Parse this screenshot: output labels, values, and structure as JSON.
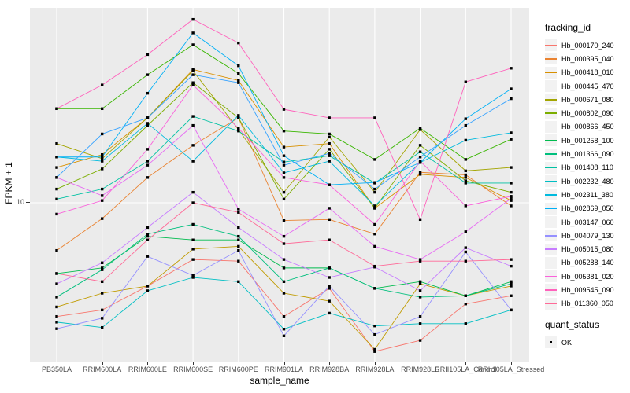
{
  "figure": {
    "panel_bg": "#EBEBEB",
    "grid_color": "#FFFFFF",
    "point_color": "#000000",
    "axis_text_color": "#4D4D4D"
  },
  "chart_data": {
    "type": "line",
    "xlabel": "sample_name",
    "ylabel": "FPKM + 1",
    "x_categories": [
      "PB350LA",
      "RRIM600LA",
      "RRIM600LE",
      "RRIM600SE",
      "RRIM600PE",
      "RRIM901LA",
      "RRIM928BA",
      "RRIM928LA",
      "RRIM928LE",
      "RRII105LA_Control",
      "RRII105LA_Stressed"
    ],
    "y_axis": {
      "scale": "log10",
      "tick_labels": [
        "10"
      ],
      "tick_values": [
        10
      ],
      "domain": [
        1.21,
        134
      ],
      "grid": "major-only"
    },
    "legend": {
      "color_legend_title": "tracking_id",
      "shape_legend_title": "quant_status",
      "shape_items": [
        {
          "label": "OK",
          "shape": "filled-square"
        }
      ],
      "position": "right"
    },
    "series": [
      {
        "name": "Hb_000170_240",
        "color": "#F8766D",
        "values": [
          2.2,
          2.4,
          3.3,
          4.7,
          4.6,
          2.2,
          3.2,
          1.38,
          1.6,
          2.6,
          2.9
        ]
      },
      {
        "name": "Hb_000395_040",
        "color": "#EA8331",
        "values": [
          5.3,
          8.1,
          14,
          21.5,
          31,
          7.9,
          8.0,
          6.6,
          15,
          14.5,
          9.6
        ]
      },
      {
        "name": "Hb_000418_010",
        "color": "#D89000",
        "values": [
          16,
          19,
          31,
          59,
          51,
          21,
          22,
          9.3,
          14.6,
          14,
          10.3
        ]
      },
      {
        "name": "Hb_000445_470",
        "color": "#C09B00",
        "values": [
          2.5,
          3.0,
          3.3,
          5.4,
          5.6,
          3.0,
          2.7,
          1.42,
          3.4,
          2.9,
          3.3
        ]
      },
      {
        "name": "Hb_000671_080",
        "color": "#A3A500",
        "values": [
          22,
          18,
          31,
          58,
          26.5,
          11.5,
          24,
          11.5,
          26.5,
          15.3,
          16
        ]
      },
      {
        "name": "Hb_000802_090",
        "color": "#7CAE00",
        "values": [
          12,
          15.7,
          28,
          49.5,
          31,
          10.5,
          20.4,
          9.3,
          21.5,
          13.4,
          11.5
        ]
      },
      {
        "name": "Hb_000866_450",
        "color": "#39B600",
        "values": [
          35,
          35,
          55,
          82,
          56,
          26,
          25,
          17.8,
          27,
          17.8,
          23.3
        ]
      },
      {
        "name": "Hb_001258_100",
        "color": "#00BB4E",
        "values": [
          3.9,
          4.2,
          6.4,
          6.1,
          6.1,
          4.2,
          4.2,
          3.2,
          3.5,
          2.9,
          3.5
        ]
      },
      {
        "name": "Hb_001366_090",
        "color": "#00BF7D",
        "values": [
          2.85,
          4.1,
          6.6,
          7.5,
          6.4,
          3.5,
          4.2,
          3.2,
          2.85,
          2.9,
          3.4
        ]
      },
      {
        "name": "Hb_001408_110",
        "color": "#00C1A3",
        "values": [
          10.5,
          12,
          17.4,
          31.6,
          26,
          17.2,
          18.7,
          13,
          19.7,
          13,
          13
        ]
      },
      {
        "name": "Hb_002232_480",
        "color": "#00BFC4",
        "values": [
          2.04,
          1.9,
          3.1,
          3.7,
          3.5,
          1.86,
          2.3,
          1.94,
          2.0,
          2.0,
          2.4
        ]
      },
      {
        "name": "Hb_002311_380",
        "color": "#00BADE",
        "values": [
          18.4,
          17.4,
          28.8,
          17.4,
          32,
          14.9,
          17.4,
          9.6,
          17.1,
          23,
          25.4
        ]
      },
      {
        "name": "Hb_002869_050",
        "color": "#00B0F6",
        "values": [
          18.4,
          18.4,
          43,
          96,
          62,
          18.7,
          12.7,
          13.1,
          17.1,
          30.6,
          45.6
        ]
      },
      {
        "name": "Hb_003147_060",
        "color": "#35A2FF",
        "values": [
          14,
          25,
          31,
          55,
          49.5,
          16.5,
          19.3,
          12,
          18.4,
          28,
          40
        ]
      },
      {
        "name": "Hb_004079_130",
        "color": "#9590FF",
        "values": [
          1.87,
          2.15,
          4.9,
          3.8,
          5.3,
          1.7,
          3.3,
          1.73,
          2.2,
          5.2,
          2.4
        ]
      },
      {
        "name": "Hb_005015_080",
        "color": "#C77CFF",
        "values": [
          3.4,
          4.5,
          7.2,
          11.5,
          7.2,
          4.7,
          3.7,
          4.25,
          3.1,
          5.5,
          4.3
        ]
      },
      {
        "name": "Hb_005288_140",
        "color": "#E76BF3",
        "values": [
          14,
          11,
          16.5,
          28,
          9.2,
          6.4,
          9.3,
          5.6,
          4.7,
          6.8,
          10.6
        ]
      },
      {
        "name": "Hb_005381_020",
        "color": "#FA62DB",
        "values": [
          8.6,
          10.3,
          20.4,
          48,
          27,
          14,
          12.7,
          7.5,
          17.4,
          9.6,
          10.9
        ]
      },
      {
        "name": "Hb_009545_090",
        "color": "#FF62BC",
        "values": [
          35,
          48,
          72,
          115,
          84,
          34.7,
          31,
          31,
          8,
          50,
          60
        ]
      },
      {
        "name": "Hb_011360_050",
        "color": "#FF6A98",
        "values": [
          3.9,
          3.5,
          6.1,
          10,
          8.8,
          5.8,
          6.1,
          4.3,
          4.6,
          4.6,
          4.7
        ]
      }
    ]
  }
}
